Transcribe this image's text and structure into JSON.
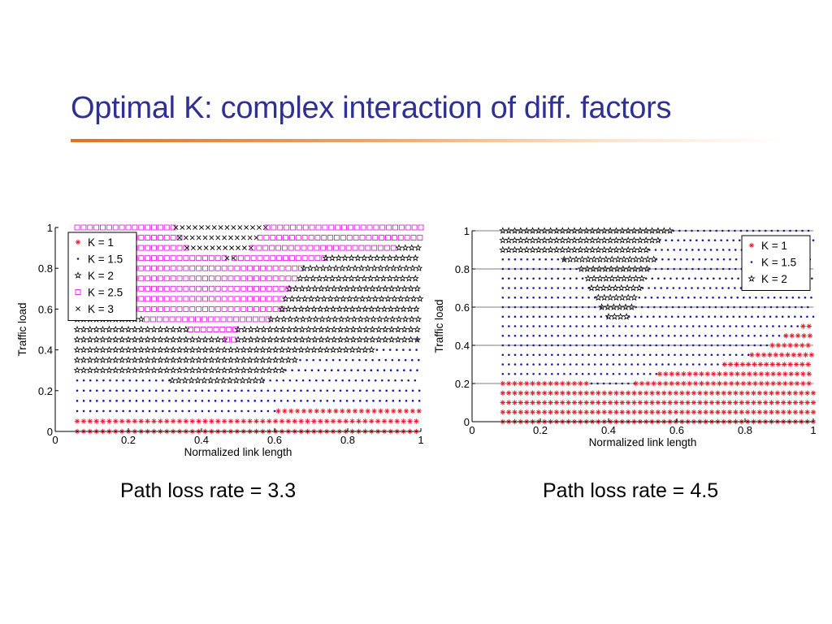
{
  "slide": {
    "title": "Optimal K: complex interaction of diff. factors",
    "captions": [
      "Path loss rate = 3.3",
      "Path loss rate = 4.5"
    ]
  },
  "colors": {
    "title": "#2e3192",
    "rule": "#e8701a",
    "k1": "#e0202e",
    "k15": "#1a1aa0",
    "k2": "#000000",
    "k25": "#e020e0",
    "k3": "#000000"
  },
  "chart_data": [
    {
      "type": "scatter",
      "title": "",
      "xlabel": "Normalized link length",
      "ylabel": "Traffic load",
      "xlim": [
        0,
        1
      ],
      "ylim": [
        0,
        1
      ],
      "x_ticks": [
        "0",
        "0.2",
        "0.4",
        "0.6",
        "0.8",
        "1"
      ],
      "y_ticks": [
        "0",
        "0.2",
        "0.4",
        "0.6",
        "0.8",
        "1"
      ],
      "legend_position": "top-left",
      "series": [
        {
          "name": "K = 1",
          "marker": "asterisk",
          "color": "#e0202e"
        },
        {
          "name": "K = 1.5",
          "marker": "dot",
          "color": "#1a1aa0"
        },
        {
          "name": "K = 2",
          "marker": "star",
          "color": "#000000"
        },
        {
          "name": "K = 2.5",
          "marker": "square",
          "color": "#e020e0"
        },
        {
          "name": "K = 3",
          "marker": "x",
          "color": "#000000"
        }
      ],
      "regions": [
        {
          "y": 0.0,
          "segments": [
            [
              0.06,
              1.0,
              "K = 1"
            ]
          ]
        },
        {
          "y": 0.05,
          "segments": [
            [
              0.06,
              1.0,
              "K = 1"
            ]
          ]
        },
        {
          "y": 0.1,
          "segments": [
            [
              0.06,
              0.61,
              "K = 1.5"
            ],
            [
              0.61,
              1.0,
              "K = 1"
            ]
          ]
        },
        {
          "y": 0.15,
          "segments": [
            [
              0.06,
              1.0,
              "K = 1.5"
            ]
          ]
        },
        {
          "y": 0.2,
          "segments": [
            [
              0.06,
              1.0,
              "K = 1.5"
            ]
          ]
        },
        {
          "y": 0.25,
          "segments": [
            [
              0.06,
              0.32,
              "K = 1.5"
            ],
            [
              0.32,
              0.57,
              "K = 2"
            ],
            [
              0.57,
              1.0,
              "K = 1.5"
            ]
          ]
        },
        {
          "y": 0.3,
          "segments": [
            [
              0.06,
              0.63,
              "K = 2"
            ],
            [
              0.63,
              1.0,
              "K = 1.5"
            ]
          ]
        },
        {
          "y": 0.35,
          "segments": [
            [
              0.06,
              0.67,
              "K = 2"
            ],
            [
              0.67,
              1.0,
              "K = 1.5"
            ]
          ]
        },
        {
          "y": 0.4,
          "segments": [
            [
              0.06,
              0.88,
              "K = 2"
            ],
            [
              0.88,
              1.0,
              "K = 1.5"
            ]
          ]
        },
        {
          "y": 0.45,
          "segments": [
            [
              0.06,
              0.47,
              "K = 2"
            ],
            [
              0.47,
              0.5,
              "K = 2.5"
            ],
            [
              0.5,
              0.99,
              "K = 2"
            ],
            [
              0.99,
              1.0,
              "K = 1.5"
            ]
          ]
        },
        {
          "y": 0.5,
          "segments": [
            [
              0.06,
              0.37,
              "K = 2"
            ],
            [
              0.37,
              0.5,
              "K = 2.5"
            ],
            [
              0.5,
              1.0,
              "K = 2"
            ]
          ]
        },
        {
          "y": 0.55,
          "segments": [
            [
              0.06,
              0.25,
              "K = 2"
            ],
            [
              0.25,
              0.59,
              "K = 2.5"
            ],
            [
              0.59,
              1.0,
              "K = 2"
            ]
          ]
        },
        {
          "y": 0.6,
          "segments": [
            [
              0.06,
              0.62,
              "K = 2.5"
            ],
            [
              0.62,
              1.0,
              "K = 2"
            ]
          ]
        },
        {
          "y": 0.65,
          "segments": [
            [
              0.06,
              0.63,
              "K = 2.5"
            ],
            [
              0.63,
              1.0,
              "K = 2"
            ]
          ]
        },
        {
          "y": 0.7,
          "segments": [
            [
              0.06,
              0.64,
              "K = 2.5"
            ],
            [
              0.64,
              1.0,
              "K = 2"
            ]
          ]
        },
        {
          "y": 0.75,
          "segments": [
            [
              0.06,
              0.67,
              "K = 2.5"
            ],
            [
              0.67,
              1.0,
              "K = 2"
            ]
          ]
        },
        {
          "y": 0.8,
          "segments": [
            [
              0.06,
              0.68,
              "K = 2.5"
            ],
            [
              0.68,
              1.0,
              "K = 2"
            ]
          ]
        },
        {
          "y": 0.85,
          "segments": [
            [
              0.06,
              0.47,
              "K = 2.5"
            ],
            [
              0.47,
              0.49,
              "K = 3"
            ],
            [
              0.49,
              0.74,
              "K = 2.5"
            ],
            [
              0.74,
              1.0,
              "K = 2"
            ]
          ]
        },
        {
          "y": 0.9,
          "segments": [
            [
              0.06,
              0.36,
              "K = 2.5"
            ],
            [
              0.36,
              0.54,
              "K = 3"
            ],
            [
              0.54,
              0.94,
              "K = 2.5"
            ],
            [
              0.94,
              1.0,
              "K = 2"
            ]
          ]
        },
        {
          "y": 0.95,
          "segments": [
            [
              0.06,
              0.34,
              "K = 2.5"
            ],
            [
              0.34,
              0.56,
              "K = 3"
            ],
            [
              0.56,
              1.0,
              "K = 2.5"
            ]
          ]
        },
        {
          "y": 1.0,
          "segments": [
            [
              0.06,
              0.33,
              "K = 2.5"
            ],
            [
              0.33,
              0.58,
              "K = 3"
            ],
            [
              0.58,
              1.0,
              "K = 2.5"
            ]
          ]
        }
      ]
    },
    {
      "type": "scatter",
      "title": "",
      "xlabel": "Normalized link length",
      "ylabel": "Traffic load",
      "xlim": [
        0,
        1
      ],
      "ylim": [
        0,
        1
      ],
      "x_ticks": [
        "0",
        "0.2",
        "0.4",
        "0.6",
        "0.8",
        "1"
      ],
      "y_ticks": [
        "0",
        "0.2",
        "0.4",
        "0.6",
        "0.8",
        "1"
      ],
      "legend_position": "top-right",
      "series": [
        {
          "name": "K = 1",
          "marker": "asterisk",
          "color": "#e0202e"
        },
        {
          "name": "K = 1.5",
          "marker": "dot",
          "color": "#1a1aa0"
        },
        {
          "name": "K = 2",
          "marker": "star",
          "color": "#000000"
        }
      ],
      "regions": [
        {
          "y": 0.0,
          "segments": [
            [
              0.09,
              1.0,
              "K = 1"
            ]
          ]
        },
        {
          "y": 0.05,
          "segments": [
            [
              0.09,
              1.0,
              "K = 1"
            ]
          ]
        },
        {
          "y": 0.1,
          "segments": [
            [
              0.09,
              1.0,
              "K = 1"
            ]
          ]
        },
        {
          "y": 0.15,
          "segments": [
            [
              0.09,
              1.0,
              "K = 1"
            ]
          ]
        },
        {
          "y": 0.2,
          "segments": [
            [
              0.09,
              0.35,
              "K = 1"
            ],
            [
              0.35,
              0.48,
              "K = 1.5"
            ],
            [
              0.48,
              1.0,
              "K = 1"
            ]
          ]
        },
        {
          "y": 0.25,
          "segments": [
            [
              0.09,
              0.55,
              "K = 1.5"
            ],
            [
              0.55,
              1.0,
              "K = 1"
            ]
          ]
        },
        {
          "y": 0.3,
          "segments": [
            [
              0.09,
              0.74,
              "K = 1.5"
            ],
            [
              0.74,
              1.0,
              "K = 1"
            ]
          ]
        },
        {
          "y": 0.35,
          "segments": [
            [
              0.09,
              0.82,
              "K = 1.5"
            ],
            [
              0.82,
              1.0,
              "K = 1"
            ]
          ]
        },
        {
          "y": 0.4,
          "segments": [
            [
              0.09,
              0.88,
              "K = 1.5"
            ],
            [
              0.88,
              1.0,
              "K = 1"
            ]
          ]
        },
        {
          "y": 0.45,
          "segments": [
            [
              0.09,
              0.92,
              "K = 1.5"
            ],
            [
              0.92,
              1.0,
              "K = 1"
            ]
          ]
        },
        {
          "y": 0.5,
          "segments": [
            [
              0.09,
              0.97,
              "K = 1.5"
            ],
            [
              0.97,
              1.0,
              "K = 1"
            ]
          ]
        },
        {
          "y": 0.55,
          "segments": [
            [
              0.09,
              0.4,
              "K = 1.5"
            ],
            [
              0.4,
              0.46,
              "K = 2"
            ],
            [
              0.46,
              1.0,
              "K = 1.5"
            ]
          ]
        },
        {
          "y": 0.6,
          "segments": [
            [
              0.09,
              0.38,
              "K = 1.5"
            ],
            [
              0.38,
              0.48,
              "K = 2"
            ],
            [
              0.48,
              1.0,
              "K = 1.5"
            ]
          ]
        },
        {
          "y": 0.65,
          "segments": [
            [
              0.09,
              0.37,
              "K = 1.5"
            ],
            [
              0.37,
              0.49,
              "K = 2"
            ],
            [
              0.49,
              1.0,
              "K = 1.5"
            ]
          ]
        },
        {
          "y": 0.7,
          "segments": [
            [
              0.09,
              0.35,
              "K = 1.5"
            ],
            [
              0.35,
              0.5,
              "K = 2"
            ],
            [
              0.5,
              1.0,
              "K = 1.5"
            ]
          ]
        },
        {
          "y": 0.75,
          "segments": [
            [
              0.09,
              0.34,
              "K = 1.5"
            ],
            [
              0.34,
              0.51,
              "K = 2"
            ],
            [
              0.51,
              1.0,
              "K = 1.5"
            ]
          ]
        },
        {
          "y": 0.8,
          "segments": [
            [
              0.09,
              0.32,
              "K = 1.5"
            ],
            [
              0.32,
              0.52,
              "K = 2"
            ],
            [
              0.52,
              1.0,
              "K = 1.5"
            ]
          ]
        },
        {
          "y": 0.85,
          "segments": [
            [
              0.09,
              0.27,
              "K = 1.5"
            ],
            [
              0.27,
              0.54,
              "K = 2"
            ],
            [
              0.54,
              1.0,
              "K = 1.5"
            ]
          ]
        },
        {
          "y": 0.9,
          "segments": [
            [
              0.09,
              0.52,
              "K = 2"
            ],
            [
              0.52,
              1.0,
              "K = 1.5"
            ]
          ]
        },
        {
          "y": 0.95,
          "segments": [
            [
              0.09,
              0.55,
              "K = 2"
            ],
            [
              0.55,
              1.0,
              "K = 1.5"
            ]
          ]
        },
        {
          "y": 1.0,
          "segments": [
            [
              0.09,
              0.59,
              "K = 2"
            ],
            [
              0.59,
              1.0,
              "K = 1.5"
            ]
          ]
        }
      ]
    }
  ]
}
